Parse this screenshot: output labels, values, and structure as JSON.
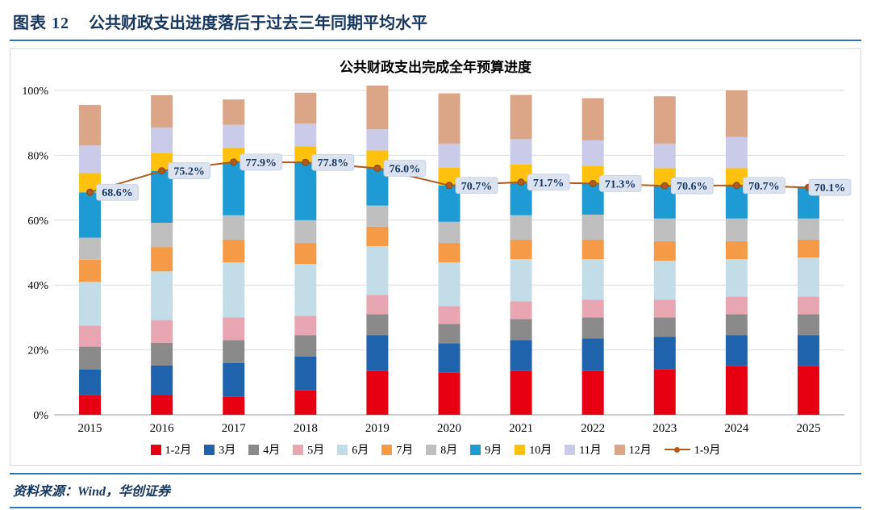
{
  "figure": {
    "label": "图表 12",
    "title": "公共财政支出进度落后于过去三年同期平均水平"
  },
  "source": "资料来源：Wind，华创证券",
  "colors": {
    "accent": "#17375e",
    "rule": "#2e75b6",
    "chart_border": "#d9d9d9",
    "grid": "#dcdcdc",
    "axis": "#9a9a9a"
  },
  "chart_data": {
    "type": "bar",
    "subtype": "stacked-bars-with-line",
    "title": "公共财政支出完成全年预算进度",
    "categories": [
      "2015",
      "2016",
      "2017",
      "2018",
      "2019",
      "2020",
      "2021",
      "2022",
      "2023",
      "2024",
      "2025"
    ],
    "series": [
      {
        "name": "1-2月",
        "color": "#e60012",
        "values": [
          6.0,
          6.2,
          5.5,
          7.5,
          13.5,
          13.0,
          13.5,
          13.5,
          14.0,
          15.0,
          15.0
        ]
      },
      {
        "name": "3月",
        "color": "#1f63ac",
        "values": [
          8.0,
          9.0,
          10.5,
          10.5,
          11.0,
          9.0,
          9.5,
          10.0,
          10.0,
          9.5,
          9.5
        ]
      },
      {
        "name": "4月",
        "color": "#8a8a8a",
        "values": [
          7.0,
          7.0,
          7.0,
          6.5,
          6.5,
          6.0,
          6.5,
          6.5,
          6.0,
          6.5,
          6.5
        ]
      },
      {
        "name": "5月",
        "color": "#e7a6b2",
        "values": [
          6.5,
          7.0,
          7.0,
          6.0,
          6.0,
          5.5,
          5.5,
          5.5,
          5.5,
          5.5,
          5.5
        ]
      },
      {
        "name": "6月",
        "color": "#c2dde7",
        "values": [
          13.5,
          15.0,
          17.0,
          16.0,
          15.0,
          13.5,
          13.0,
          12.5,
          12.0,
          11.5,
          12.0
        ]
      },
      {
        "name": "7月",
        "color": "#f59a46",
        "values": [
          6.8,
          7.5,
          7.0,
          6.5,
          6.0,
          6.0,
          6.0,
          6.0,
          6.0,
          5.5,
          5.5
        ]
      },
      {
        "name": "8月",
        "color": "#bfbfbf",
        "values": [
          6.8,
          7.5,
          7.5,
          7.0,
          6.5,
          6.5,
          7.5,
          7.7,
          7.0,
          7.0,
          6.5
        ]
      },
      {
        "name": "9月",
        "color": "#1e9bd2",
        "values": [
          14.0,
          16.0,
          16.4,
          17.8,
          11.5,
          11.2,
          10.2,
          9.6,
          10.1,
          10.2,
          9.6
        ]
      },
      {
        "name": "10月",
        "color": "#fec10e",
        "values": [
          5.9,
          5.5,
          4.5,
          5.0,
          5.5,
          5.5,
          5.5,
          5.5,
          5.4,
          5.3,
          0
        ]
      },
      {
        "name": "11月",
        "color": "#c9cbe8",
        "values": [
          8.5,
          7.8,
          7.0,
          7.0,
          6.5,
          7.3,
          7.8,
          7.8,
          7.5,
          9.7,
          0
        ]
      },
      {
        "name": "12月",
        "color": "#dba588",
        "values": [
          12.5,
          10.0,
          7.8,
          9.5,
          13.5,
          15.6,
          13.6,
          13.0,
          14.7,
          14.3,
          0
        ]
      }
    ],
    "line_series": {
      "name": "1-9月",
      "color": "#b05a1e",
      "values": [
        68.6,
        75.2,
        77.9,
        77.8,
        76.0,
        70.7,
        71.7,
        71.3,
        70.6,
        70.7,
        70.1
      ],
      "labels": [
        "68.6%",
        "75.2%",
        "77.9%",
        "77.8%",
        "76.0%",
        "70.7%",
        "71.7%",
        "71.3%",
        "70.6%",
        "70.7%",
        "70.1%"
      ],
      "label_bg": "#dbe3f1",
      "label_border": "#c3cfe2",
      "label_color": "#17375e"
    },
    "ylim": [
      0,
      100
    ],
    "yticks": [
      {
        "value": 0,
        "label": "0%"
      },
      {
        "value": 20,
        "label": "20%"
      },
      {
        "value": 40,
        "label": "40%"
      },
      {
        "value": 60,
        "label": "60%"
      },
      {
        "value": 80,
        "label": "80%"
      },
      {
        "value": 100,
        "label": "100%"
      }
    ],
    "grid": true,
    "legend_position": "bottom"
  }
}
